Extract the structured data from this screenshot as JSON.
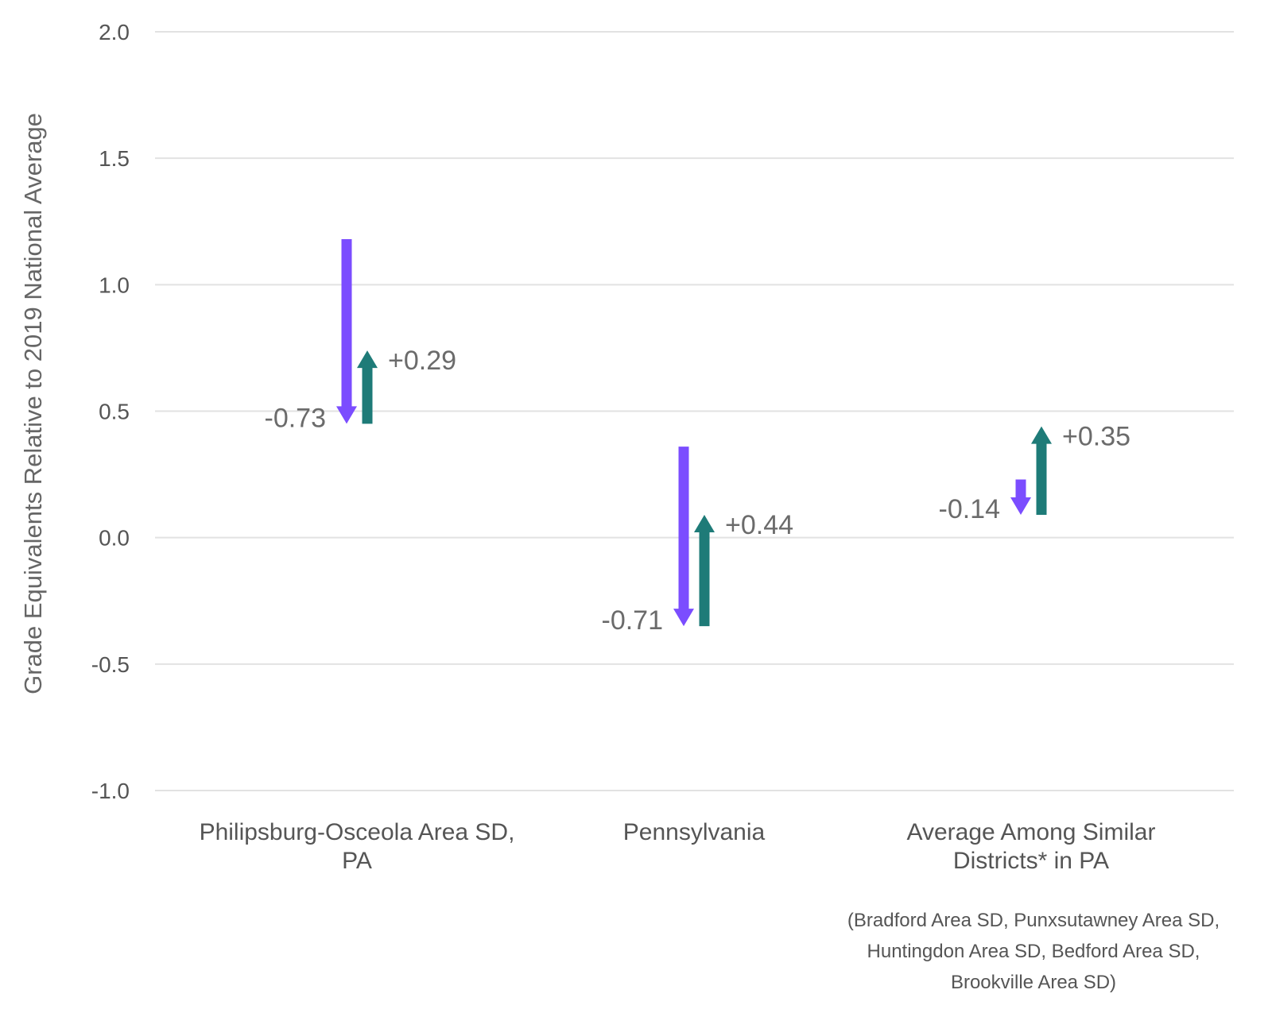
{
  "chart_data": {
    "type": "arrow",
    "ylabel": "Grade Equivalents Relative to 2019 National Average",
    "ylim": [
      -1.0,
      2.0
    ],
    "yticks": [
      "2.0",
      "1.5",
      "1.0",
      "0.5",
      "0.0",
      "-0.5",
      "-1.0"
    ],
    "grid": true,
    "colors": {
      "decline": "#7b4dff",
      "recovery": "#1e7b78"
    },
    "categories": [
      {
        "label_lines": [
          "Philipsburg-Osceola Area SD,",
          "PA"
        ],
        "decline": {
          "from": 1.18,
          "to": 0.45,
          "label": "-0.73"
        },
        "recovery": {
          "from": 0.45,
          "to": 0.74,
          "label": "+0.29"
        }
      },
      {
        "label_lines": [
          "Pennsylvania"
        ],
        "decline": {
          "from": 0.36,
          "to": -0.35,
          "label": "-0.71"
        },
        "recovery": {
          "from": -0.35,
          "to": 0.09,
          "label": "+0.44"
        }
      },
      {
        "label_lines": [
          "Average Among Similar",
          "Districts* in PA"
        ],
        "decline": {
          "from": 0.23,
          "to": 0.09,
          "label": "-0.14"
        },
        "recovery": {
          "from": 0.09,
          "to": 0.44,
          "label": "+0.35"
        }
      }
    ],
    "note_lines": [
      "(Bradford Area SD, Punxsutawney Area SD,",
      "Huntingdon Area SD, Bedford Area SD,",
      "Brookville Area SD)"
    ]
  }
}
